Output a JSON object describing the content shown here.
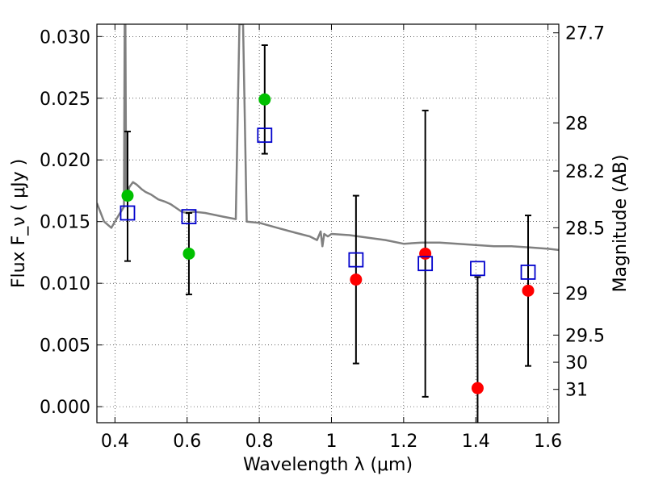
{
  "chart_data": {
    "type": "scatter",
    "title": "",
    "xlabel": "Wavelength  λ (μm)",
    "ylabel": "Flux  F_ν  ( μJy )",
    "ylabel_right": "Magnitude (AB)",
    "xlim": [
      0.35,
      1.63
    ],
    "ylim": [
      -0.0013,
      0.031
    ],
    "grid": true,
    "x_ticks": [
      0.4,
      0.6,
      0.8,
      1.0,
      1.2,
      1.4,
      1.6
    ],
    "x_tick_labels": [
      "0.4",
      "0.6",
      "0.8",
      "1",
      "1.2",
      "1.4",
      "1.6"
    ],
    "y_ticks": [
      0.0,
      0.005,
      0.01,
      0.015,
      0.02,
      0.025,
      0.03
    ],
    "y_tick_labels": [
      "0.000",
      "0.005",
      "0.010",
      "0.015",
      "0.020",
      "0.025",
      "0.030"
    ],
    "right_axis_ticks": [
      {
        "label": "27.7",
        "flux": 0.0303
      },
      {
        "label": "28",
        "flux": 0.023
      },
      {
        "label": "28.2",
        "flux": 0.0191
      },
      {
        "label": "28.5",
        "flux": 0.0145
      },
      {
        "label": "29",
        "flux": 0.0092
      },
      {
        "label": "29.5",
        "flux": 0.0058
      },
      {
        "label": "30",
        "flux": 0.0036
      },
      {
        "label": "31",
        "flux": 0.0014
      }
    ],
    "series": [
      {
        "name": "model spectrum",
        "kind": "line",
        "color": "#808080",
        "x": [
          0.35,
          0.37,
          0.39,
          0.41,
          0.425,
          0.427,
          0.429,
          0.431,
          0.44,
          0.45,
          0.46,
          0.475,
          0.485,
          0.5,
          0.52,
          0.54,
          0.555,
          0.565,
          0.575,
          0.585,
          0.6,
          0.62,
          0.65,
          0.7,
          0.735,
          0.745,
          0.75,
          0.755,
          0.765,
          0.8,
          0.85,
          0.9,
          0.94,
          0.96,
          0.97,
          0.975,
          0.98,
          0.99,
          1.0,
          1.05,
          1.1,
          1.15,
          1.2,
          1.25,
          1.3,
          1.35,
          1.4,
          1.45,
          1.5,
          1.55,
          1.6,
          1.63
        ],
        "y": [
          0.0165,
          0.015,
          0.0145,
          0.0155,
          0.0162,
          0.031,
          0.031,
          0.0168,
          0.0178,
          0.0182,
          0.018,
          0.0176,
          0.0174,
          0.0172,
          0.0168,
          0.0166,
          0.0164,
          0.0162,
          0.016,
          0.0158,
          0.0157,
          0.0158,
          0.0157,
          0.0154,
          0.0152,
          0.031,
          0.031,
          0.031,
          0.015,
          0.0149,
          0.0145,
          0.0141,
          0.0138,
          0.0135,
          0.0142,
          0.013,
          0.014,
          0.0138,
          0.014,
          0.0139,
          0.0137,
          0.0135,
          0.0132,
          0.0133,
          0.0133,
          0.0132,
          0.0131,
          0.013,
          0.013,
          0.0129,
          0.0128,
          0.0127
        ]
      },
      {
        "name": "observed detections",
        "kind": "points",
        "marker": "circle",
        "color": "#00c000",
        "x": [
          0.435,
          0.605,
          0.815
        ],
        "y": [
          0.0171,
          0.0124,
          0.0249
        ]
      },
      {
        "name": "observed faint",
        "kind": "points",
        "marker": "circle",
        "color": "#ff0000",
        "x": [
          1.068,
          1.26,
          1.405,
          1.545
        ],
        "y": [
          0.0103,
          0.0124,
          0.0015,
          0.0094
        ]
      },
      {
        "name": "model photometry",
        "kind": "points",
        "marker": "open-square",
        "color": "#0000cc",
        "x": [
          0.435,
          0.605,
          0.815,
          1.068,
          1.26,
          1.405,
          1.545
        ],
        "y": [
          0.0157,
          0.0154,
          0.022,
          0.0119,
          0.0116,
          0.0112,
          0.0109
        ]
      },
      {
        "name": "error bars",
        "kind": "errorbar",
        "color": "#000000",
        "x": [
          0.435,
          0.605,
          0.815,
          1.068,
          1.26,
          1.405,
          1.545
        ],
        "y_low": [
          0.0118,
          0.0091,
          0.0205,
          0.0035,
          0.0008,
          -0.0015,
          0.0033
        ],
        "y_high": [
          0.0223,
          0.0157,
          0.0293,
          0.0171,
          0.024,
          0.0105,
          0.0155
        ]
      }
    ]
  }
}
